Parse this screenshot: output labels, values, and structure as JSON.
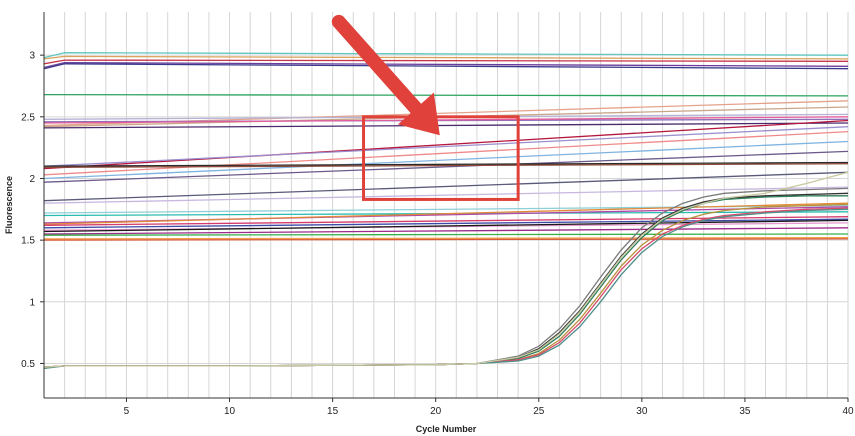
{
  "chart_data": {
    "type": "line",
    "title": "",
    "xlabel": "Cycle Number",
    "ylabel": "Fluorescence",
    "xlim": [
      1,
      40
    ],
    "ylim": [
      0.22,
      3.35
    ],
    "x_ticks": [
      5,
      10,
      15,
      20,
      25,
      30,
      35,
      40
    ],
    "y_ticks": [
      0.5,
      1,
      1.5,
      2,
      2.5,
      3
    ],
    "grid": "vertical lines every cycle, horizontal lines at y ticks",
    "legend": "none",
    "series": [
      {
        "color": "#5fc7c0",
        "x": [
          1,
          2,
          40
        ],
        "y": [
          2.98,
          3.02,
          3.0
        ]
      },
      {
        "color": "#d9a15a",
        "x": [
          1,
          2,
          40
        ],
        "y": [
          2.97,
          2.99,
          2.97
        ]
      },
      {
        "color": "#c7354a",
        "x": [
          1,
          2,
          40
        ],
        "y": [
          2.93,
          2.96,
          2.95
        ]
      },
      {
        "color": "#6a3d9a",
        "x": [
          1,
          2,
          40
        ],
        "y": [
          2.9,
          2.94,
          2.91
        ]
      },
      {
        "color": "#3a3a8c",
        "x": [
          1,
          2,
          40
        ],
        "y": [
          2.89,
          2.93,
          2.89
        ]
      },
      {
        "color": "#2ca25f",
        "x": [
          1,
          40
        ],
        "y": [
          2.68,
          2.67
        ]
      },
      {
        "color": "#e4a38a",
        "x": [
          1,
          40
        ],
        "y": [
          2.43,
          2.63
        ]
      },
      {
        "color": "#c9a68a",
        "x": [
          1,
          40
        ],
        "y": [
          2.42,
          2.58
        ]
      },
      {
        "color": "#b5b3d6",
        "x": [
          1,
          40
        ],
        "y": [
          2.48,
          2.52
        ]
      },
      {
        "color": "#8e6fb8",
        "x": [
          1,
          40
        ],
        "y": [
          2.46,
          2.48
        ]
      },
      {
        "color": "#e35d9b",
        "x": [
          1,
          40
        ],
        "y": [
          2.45,
          2.5
        ]
      },
      {
        "color": "#4a2a6b",
        "x": [
          1,
          40
        ],
        "y": [
          2.41,
          2.45
        ]
      },
      {
        "color": "#b5163d",
        "x": [
          1,
          40
        ],
        "y": [
          2.08,
          2.47
        ]
      },
      {
        "color": "#9b8fce",
        "x": [
          1,
          40
        ],
        "y": [
          2.1,
          2.42
        ]
      },
      {
        "color": "#f08a8a",
        "x": [
          1,
          40
        ],
        "y": [
          2.03,
          2.38
        ]
      },
      {
        "color": "#7fb3e0",
        "x": [
          1,
          40
        ],
        "y": [
          2.0,
          2.3
        ]
      },
      {
        "color": "#6b5a8a",
        "x": [
          1,
          40
        ],
        "y": [
          1.97,
          2.22
        ]
      },
      {
        "color": "#2b2b2b",
        "x": [
          1,
          40
        ],
        "y": [
          2.1,
          2.13
        ]
      },
      {
        "color": "#8b4a3a",
        "x": [
          1,
          40
        ],
        "y": [
          2.09,
          2.12
        ]
      },
      {
        "color": "#5a5a7a",
        "x": [
          1,
          40
        ],
        "y": [
          1.82,
          2.05
        ]
      },
      {
        "color": "#c7b8e0",
        "x": [
          1,
          40
        ],
        "y": [
          1.8,
          1.93
        ]
      },
      {
        "color": "#8fd0d6",
        "x": [
          1,
          40
        ],
        "y": [
          1.72,
          1.78
        ]
      },
      {
        "color": "#2bbcb0",
        "x": [
          1,
          40
        ],
        "y": [
          1.7,
          1.73
        ]
      },
      {
        "color": "#b04aa8",
        "x": [
          1,
          40
        ],
        "y": [
          1.64,
          1.77
        ]
      },
      {
        "color": "#e08a3a",
        "x": [
          1,
          40
        ],
        "y": [
          1.63,
          1.8
        ]
      },
      {
        "color": "#d43a6a",
        "x": [
          1,
          40
        ],
        "y": [
          1.62,
          1.69
        ]
      },
      {
        "color": "#3f4aa8",
        "x": [
          1,
          40
        ],
        "y": [
          1.6,
          1.67
        ]
      },
      {
        "color": "#e89ad0",
        "x": [
          1,
          40
        ],
        "y": [
          1.58,
          1.64
        ]
      },
      {
        "color": "#1a1a1a",
        "x": [
          1,
          40
        ],
        "y": [
          1.57,
          1.66
        ]
      },
      {
        "color": "#9c2a8a",
        "x": [
          1,
          40
        ],
        "y": [
          1.55,
          1.6
        ]
      },
      {
        "color": "#3ab04a",
        "x": [
          1,
          40
        ],
        "y": [
          1.54,
          1.55
        ]
      },
      {
        "color": "#f2a04a",
        "x": [
          1,
          40
        ],
        "y": [
          1.51,
          1.52
        ]
      },
      {
        "color": "#d85a3a",
        "x": [
          1,
          40
        ],
        "y": [
          1.5,
          1.51
        ]
      },
      {
        "color": "#333333",
        "x": [
          1,
          2,
          10,
          20,
          22,
          24,
          25,
          26,
          27,
          28,
          29,
          30,
          31,
          32,
          33,
          34,
          36,
          38,
          40
        ],
        "y": [
          0.47,
          0.48,
          0.48,
          0.49,
          0.5,
          0.55,
          0.62,
          0.75,
          0.93,
          1.15,
          1.37,
          1.55,
          1.68,
          1.76,
          1.81,
          1.84,
          1.86,
          1.87,
          1.88
        ]
      },
      {
        "color": "#2e7d5b",
        "x": [
          1,
          2,
          10,
          20,
          22,
          24,
          25,
          26,
          27,
          28,
          29,
          30,
          31,
          32,
          33,
          34,
          36,
          38,
          40
        ],
        "y": [
          0.47,
          0.48,
          0.48,
          0.49,
          0.5,
          0.54,
          0.6,
          0.72,
          0.9,
          1.12,
          1.34,
          1.52,
          1.66,
          1.74,
          1.8,
          1.83,
          1.85,
          1.86,
          1.86
        ]
      },
      {
        "color": "#7a7a7a",
        "x": [
          1,
          2,
          10,
          20,
          22,
          24,
          25,
          26,
          27,
          28,
          29,
          30,
          31,
          32,
          33,
          34,
          36,
          38,
          40
        ],
        "y": [
          0.46,
          0.48,
          0.48,
          0.49,
          0.5,
          0.56,
          0.64,
          0.78,
          0.97,
          1.2,
          1.42,
          1.6,
          1.72,
          1.8,
          1.85,
          1.88,
          1.9,
          1.91,
          1.92
        ]
      },
      {
        "color": "#b6913a",
        "x": [
          1,
          2,
          10,
          20,
          22,
          24,
          25,
          26,
          27,
          28,
          29,
          30,
          31,
          32,
          33,
          34,
          36,
          38,
          40
        ],
        "y": [
          0.47,
          0.48,
          0.48,
          0.49,
          0.5,
          0.53,
          0.58,
          0.69,
          0.86,
          1.07,
          1.29,
          1.46,
          1.58,
          1.66,
          1.71,
          1.74,
          1.77,
          1.78,
          1.79
        ]
      },
      {
        "color": "#d94a6a",
        "x": [
          1,
          2,
          10,
          20,
          22,
          24,
          25,
          26,
          27,
          28,
          29,
          30,
          31,
          32,
          33,
          34,
          36,
          38,
          40
        ],
        "y": [
          0.47,
          0.48,
          0.48,
          0.49,
          0.5,
          0.53,
          0.57,
          0.67,
          0.83,
          1.04,
          1.26,
          1.43,
          1.55,
          1.62,
          1.67,
          1.7,
          1.73,
          1.75,
          1.76
        ]
      },
      {
        "color": "#4f8f8a",
        "x": [
          1,
          2,
          10,
          20,
          22,
          24,
          25,
          26,
          27,
          28,
          29,
          30,
          31,
          32,
          33,
          34,
          36,
          38,
          40
        ],
        "y": [
          0.46,
          0.48,
          0.48,
          0.49,
          0.5,
          0.52,
          0.56,
          0.65,
          0.8,
          1.0,
          1.22,
          1.4,
          1.53,
          1.61,
          1.66,
          1.69,
          1.72,
          1.74,
          1.75
        ]
      },
      {
        "color": "#c9c9a0",
        "x": [
          1,
          2,
          10,
          20,
          22,
          24,
          25,
          26,
          27,
          28,
          29,
          30,
          31,
          32,
          33,
          34,
          36,
          38,
          40
        ],
        "y": [
          0.47,
          0.48,
          0.48,
          0.49,
          0.5,
          0.55,
          0.61,
          0.74,
          0.92,
          1.14,
          1.36,
          1.54,
          1.67,
          1.75,
          1.8,
          1.84,
          1.88,
          1.96,
          2.05
        ]
      }
    ],
    "annotations": [
      {
        "type": "rectangle",
        "color": "#e0413a",
        "x_range": [
          16.5,
          24
        ],
        "y_range": [
          1.83,
          2.5
        ]
      },
      {
        "type": "arrow",
        "color": "#e0413a",
        "from": [
          15.3,
          3.27
        ],
        "to": [
          20.2,
          2.35
        ]
      }
    ]
  }
}
